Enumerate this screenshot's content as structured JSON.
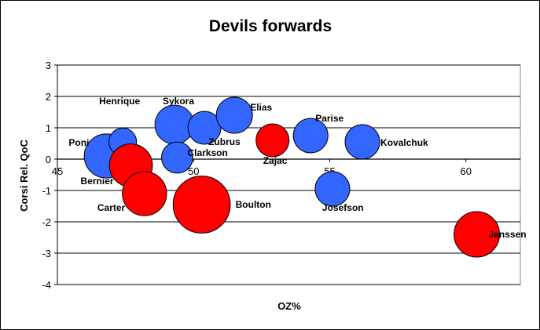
{
  "chart_data": {
    "type": "bubble",
    "title": "Devils forwards",
    "xlabel": "OZ%",
    "ylabel": "Corsi Rel. QoC",
    "xlim": [
      45,
      62
    ],
    "ylim": [
      -4,
      3
    ],
    "x_ticks": [
      45,
      50,
      55,
      60
    ],
    "y_ticks": [
      3,
      2,
      1,
      0,
      -1,
      -2,
      -3,
      -4
    ],
    "grid": "horizontal",
    "legend": "none",
    "colors": {
      "red": "#ff0000",
      "blue": "#3366ff"
    },
    "points": [
      {
        "label": "Poni",
        "x": 46.8,
        "y": 0.1,
        "size": 1.8,
        "color": "blue"
      },
      {
        "label": "Henrique",
        "x": 47.4,
        "y": 0.55,
        "size": 0.7,
        "color": "blue"
      },
      {
        "label": "Bernier",
        "x": 47.7,
        "y": -0.2,
        "size": 1.7,
        "color": "red"
      },
      {
        "label": "Carter",
        "x": 48.2,
        "y": -1.1,
        "size": 1.8,
        "color": "red"
      },
      {
        "label": "Sykora",
        "x": 49.3,
        "y": 1.1,
        "size": 1.4,
        "color": "blue"
      },
      {
        "label": "Clarkson",
        "x": 49.4,
        "y": 0.05,
        "size": 0.9,
        "color": "blue"
      },
      {
        "label": "Zubrus",
        "x": 50.4,
        "y": 1.0,
        "size": 1.0,
        "color": "blue"
      },
      {
        "label": "Boulton",
        "x": 50.3,
        "y": -1.45,
        "size": 3.0,
        "color": "red"
      },
      {
        "label": "Elias",
        "x": 51.5,
        "y": 1.4,
        "size": 1.2,
        "color": "blue"
      },
      {
        "label": "Zajac",
        "x": 52.9,
        "y": 0.6,
        "size": 1.0,
        "color": "red"
      },
      {
        "label": "Parise",
        "x": 54.3,
        "y": 0.75,
        "size": 1.1,
        "color": "blue"
      },
      {
        "label": "Josefson",
        "x": 55.1,
        "y": -0.95,
        "size": 1.1,
        "color": "blue"
      },
      {
        "label": "Kovalchuk",
        "x": 56.2,
        "y": 0.55,
        "size": 1.1,
        "color": "blue"
      },
      {
        "label": "Janssen",
        "x": 60.4,
        "y": -2.4,
        "size": 1.9,
        "color": "red"
      }
    ]
  }
}
